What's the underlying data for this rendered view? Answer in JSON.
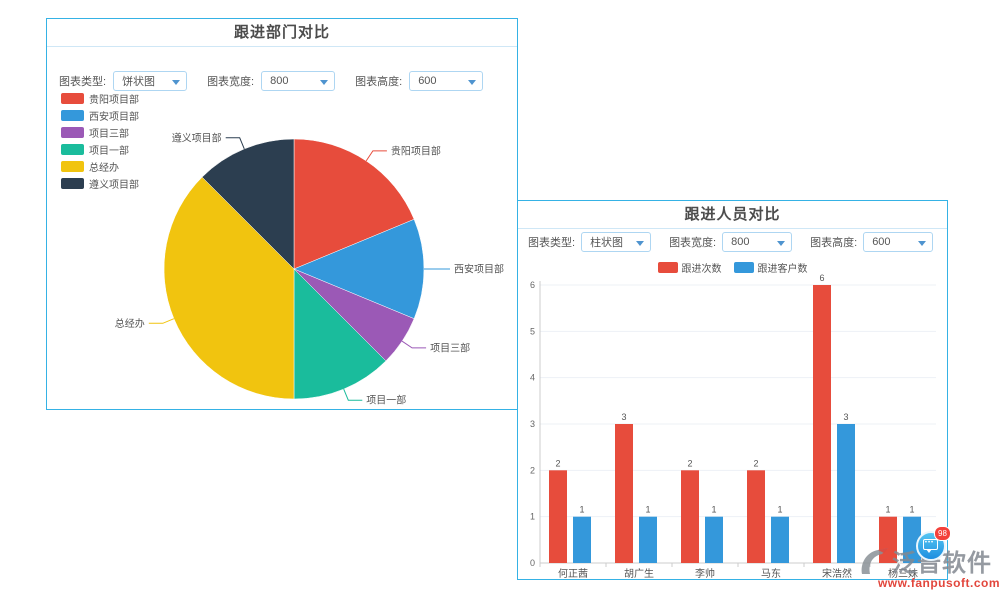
{
  "panels": [
    {
      "title": "跟进部门对比",
      "controls": [
        {
          "label": "图表类型:",
          "value": "饼状图"
        },
        {
          "label": "图表宽度:",
          "value": "800"
        },
        {
          "label": "图表高度:",
          "value": "600"
        }
      ]
    },
    {
      "title": "跟进人员对比",
      "controls": [
        {
          "label": "图表类型:",
          "value": "柱状图"
        },
        {
          "label": "图表宽度:",
          "value": "800"
        },
        {
          "label": "图表高度:",
          "value": "600"
        }
      ]
    }
  ],
  "chart_data": [
    {
      "type": "pie",
      "title": "跟进部门对比",
      "legend_position": "top-left",
      "start_angle_deg": 0,
      "direction": "clockwise",
      "labels": [
        "贵阳项目部",
        "西安项目部",
        "项目三部",
        "项目一部",
        "总经办",
        "遵义项目部"
      ],
      "values": [
        3,
        2,
        1,
        2,
        6,
        2
      ],
      "colors": [
        "#e74c3c",
        "#3498db",
        "#9b59b6",
        "#1abc9c",
        "#f1c40f",
        "#2c3e50"
      ]
    },
    {
      "type": "bar",
      "title": "跟进人员对比",
      "legend_position": "top-center",
      "grid": true,
      "value_labels": true,
      "categories": [
        "何正茜",
        "胡广生",
        "李帅",
        "马东",
        "宋浩然",
        "杨三妹"
      ],
      "series": [
        {
          "name": "跟进次数",
          "color": "#e74c3c",
          "values": [
            2,
            3,
            2,
            2,
            6,
            1
          ]
        },
        {
          "name": "跟进客户数",
          "color": "#3498db",
          "values": [
            1,
            1,
            1,
            1,
            3,
            1
          ]
        }
      ],
      "ylim": [
        0,
        6
      ],
      "yticks": [
        0,
        1,
        2,
        3,
        4,
        5,
        6
      ],
      "xlabel": "",
      "ylabel": ""
    }
  ],
  "watermark": {
    "brand": "泛普软件",
    "url": "www.fanpusoft.com"
  },
  "chat": {
    "badge": "98"
  },
  "theme": {
    "panel_border": "#35b2e5",
    "header_divider": "#cfe7f6",
    "grid_color": "#edf1f6",
    "axis_color": "#cccccc",
    "text_color": "#555555"
  }
}
